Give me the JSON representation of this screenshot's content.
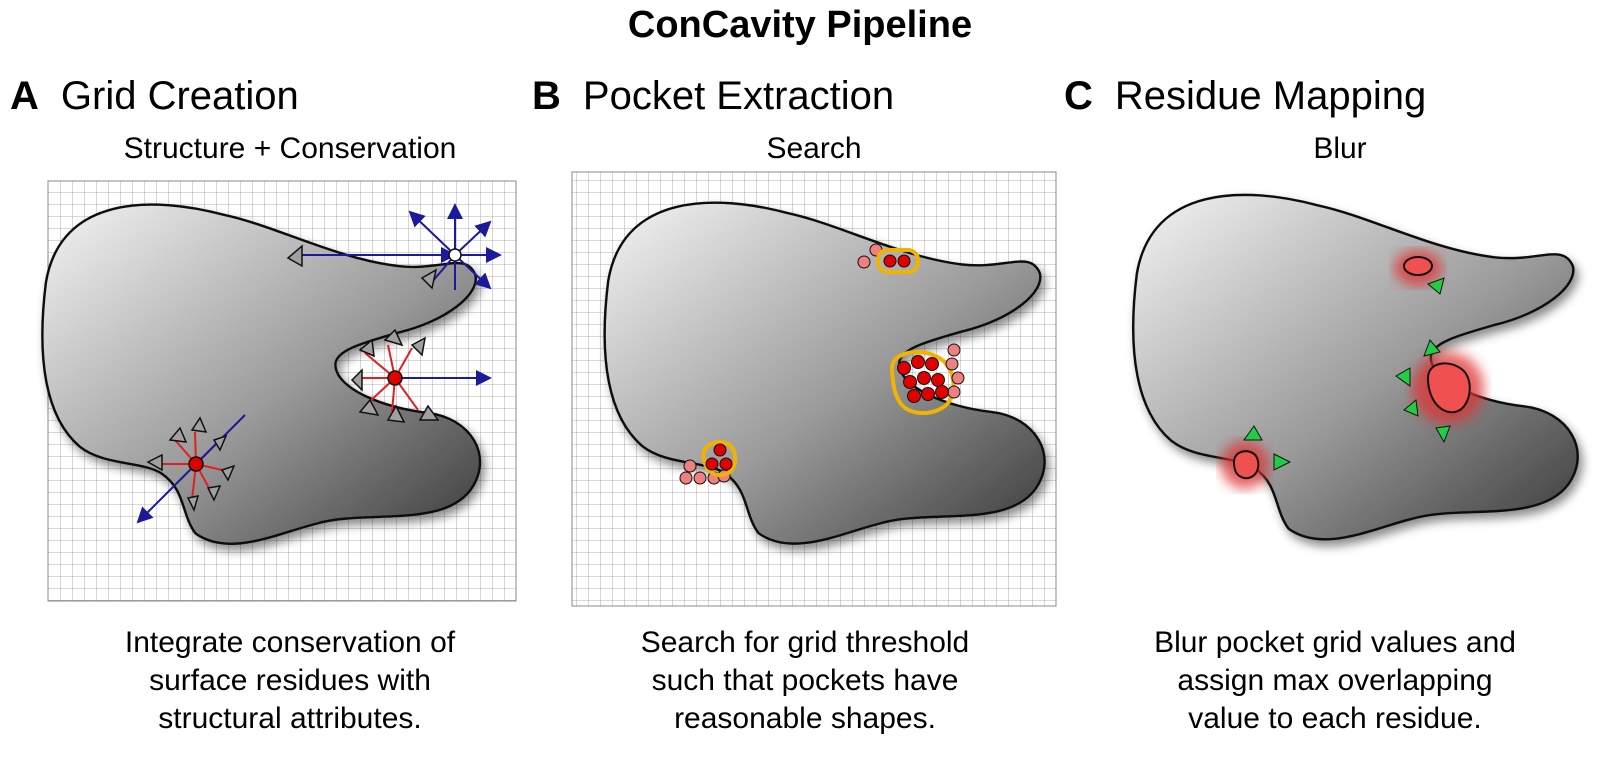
{
  "title": "ConCavity Pipeline",
  "panels": [
    {
      "letter": "A",
      "heading": "Grid Creation",
      "subtitle": "Structure + Conservation",
      "caption": [
        "Integrate conservation of",
        "surface residues with",
        "structural attributes."
      ]
    },
    {
      "letter": "B",
      "heading": "Pocket Extraction",
      "subtitle": "Search",
      "caption": [
        "Search for grid threshold",
        "such that pockets have",
        "reasonable shapes."
      ]
    },
    {
      "letter": "C",
      "heading": "Residue Mapping",
      "subtitle": "Blur",
      "caption": [
        "Blur pocket grid values and",
        "assign max overlapping",
        "value to each residue."
      ]
    }
  ],
  "colors": {
    "ray_blue": "#1a1a9a",
    "ray_red": "#e02020",
    "pocket_red": "#e00000",
    "pocket_pink": "#f08080",
    "outline_gold": "#f0b400",
    "residue_green": "#22cc44",
    "residue_gray": "#a0a0a0"
  }
}
